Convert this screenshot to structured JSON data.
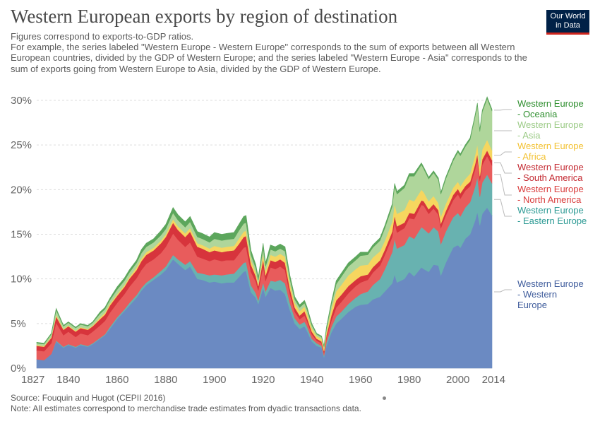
{
  "header": {
    "title": "Western European exports by region of destination",
    "subtitle": "Figures correspond to exports-to-GDP ratios.\nFor example, the series labeled \"Western Europe - Western Europe\" corresponds to the sum of exports between all Western European countries, divided by the GDP of Western Europe; and the series labeled \"Western Europe - Asia\" corresponds to the sum of exports going from Western Europe to Asia, divided by the GDP of Western Europe.",
    "logo_line1": "Our World",
    "logo_line2": "in Data"
  },
  "footer": {
    "source": "Source: Fouquin and Hugot (CEPII 2016)",
    "note": "Note: All estimates correspond to merchandise trade estimates from dyadic transactions data."
  },
  "colors": {
    "Western Europe - Western Europe": "#6b8ac2",
    "Western Europe - Eastern Europe": "#68b2b0",
    "Western Europe - North America": "#e85c5c",
    "Western Europe - South America": "#d7343c",
    "Western Europe - Africa": "#f6d65f",
    "Western Europe - Asia": "#afd69b",
    "Western Europe - Oceania": "#5ca65c"
  },
  "label_colors": {
    "Western Europe - Western Europe": "#3f5c9c",
    "Western Europe - Eastern Europe": "#2c9a94",
    "Western Europe - North America": "#d93b3b",
    "Western Europe - South America": "#c42a32",
    "Western Europe - Africa": "#f3c233",
    "Western Europe - Asia": "#9ccb87",
    "Western Europe - Oceania": "#2f8f2f"
  },
  "chart_data": {
    "type": "area",
    "stacked": true,
    "y_unit": "%",
    "xlim": [
      1827,
      2014
    ],
    "ylim": [
      0,
      30
    ],
    "x_ticks": [
      1827,
      1840,
      1860,
      1880,
      1900,
      1920,
      1940,
      1960,
      1980,
      2000,
      2014
    ],
    "y_ticks": [
      0,
      5,
      10,
      15,
      20,
      25,
      30
    ],
    "y_tick_labels": [
      "0%",
      "5%",
      "10%",
      "15%",
      "20%",
      "25%",
      "30%"
    ],
    "grid": "horizontal dashed",
    "legend_placement": "right, labels at series ends",
    "x": [
      1827,
      1830,
      1833,
      1835,
      1838,
      1840,
      1843,
      1845,
      1848,
      1850,
      1853,
      1855,
      1857,
      1860,
      1863,
      1865,
      1868,
      1870,
      1872,
      1875,
      1878,
      1880,
      1883,
      1885,
      1888,
      1890,
      1893,
      1895,
      1898,
      1900,
      1903,
      1905,
      1908,
      1910,
      1912,
      1913,
      1915,
      1917,
      1918,
      1920,
      1921,
      1923,
      1925,
      1927,
      1929,
      1931,
      1933,
      1935,
      1937,
      1938,
      1940,
      1942,
      1944,
      1945,
      1946,
      1948,
      1950,
      1952,
      1955,
      1958,
      1960,
      1963,
      1965,
      1968,
      1970,
      1973,
      1974,
      1975,
      1978,
      1980,
      1982,
      1985,
      1986,
      1988,
      1990,
      1992,
      1993,
      1995,
      1998,
      2000,
      2001,
      2003,
      2005,
      2007,
      2008,
      2009,
      2010,
      2012,
      2014
    ],
    "series": [
      {
        "name": "Western Europe - Western Europe",
        "values": [
          1.0,
          0.9,
          1.6,
          3.0,
          2.3,
          2.6,
          2.3,
          2.6,
          2.4,
          2.7,
          3.3,
          3.7,
          4.4,
          5.5,
          6.4,
          7.0,
          7.9,
          8.7,
          9.3,
          9.9,
          10.5,
          11.0,
          12.2,
          11.7,
          11.0,
          11.4,
          10.0,
          9.9,
          9.6,
          9.7,
          9.5,
          9.6,
          9.6,
          10.2,
          10.8,
          10.9,
          8.5,
          7.9,
          7.2,
          9.0,
          8.0,
          9.0,
          8.7,
          8.8,
          8.3,
          6.5,
          5.0,
          4.4,
          4.7,
          4.2,
          3.0,
          2.5,
          2.3,
          1.2,
          2.5,
          4.0,
          5.0,
          5.5,
          6.3,
          6.9,
          7.1,
          7.2,
          7.7,
          8.0,
          8.6,
          9.5,
          10.5,
          9.6,
          10.0,
          10.8,
          10.3,
          11.3,
          11.1,
          10.8,
          11.6,
          11.5,
          10.4,
          11.8,
          13.5,
          13.8,
          13.5,
          14.5,
          15.0,
          16.5,
          17.5,
          16.0,
          17.3,
          18.0,
          17.1
        ]
      },
      {
        "name": "Western Europe - Eastern Europe",
        "values": [
          0.0,
          0.0,
          0.0,
          0.1,
          0.1,
          0.1,
          0.1,
          0.1,
          0.1,
          0.1,
          0.1,
          0.1,
          0.2,
          0.2,
          0.2,
          0.3,
          0.3,
          0.3,
          0.3,
          0.3,
          0.4,
          0.4,
          0.5,
          0.5,
          0.6,
          0.6,
          0.7,
          0.7,
          0.8,
          0.8,
          0.9,
          0.9,
          1.0,
          1.0,
          1.0,
          1.0,
          0.8,
          0.5,
          0.4,
          0.6,
          0.6,
          0.8,
          1.0,
          1.1,
          1.2,
          0.8,
          0.6,
          0.5,
          0.5,
          0.5,
          0.3,
          0.3,
          0.2,
          0.2,
          0.4,
          0.6,
          0.8,
          0.8,
          0.9,
          1.0,
          1.2,
          1.4,
          1.6,
          2.0,
          2.5,
          3.5,
          4.0,
          3.8,
          3.8,
          4.0,
          4.2,
          4.5,
          4.5,
          4.3,
          4.2,
          3.8,
          3.5,
          3.5,
          3.4,
          3.6,
          3.5,
          3.5,
          3.6,
          3.8,
          3.9,
          3.2,
          3.5,
          3.7,
          3.6
        ]
      },
      {
        "name": "Western Europe - North America",
        "values": [
          1.0,
          1.0,
          1.2,
          2.0,
          1.3,
          1.4,
          1.1,
          1.2,
          1.2,
          1.3,
          1.4,
          1.5,
          1.6,
          1.6,
          1.7,
          1.8,
          1.9,
          2.0,
          2.1,
          2.0,
          2.0,
          2.2,
          2.4,
          2.2,
          2.0,
          2.1,
          1.8,
          1.7,
          1.6,
          1.7,
          1.6,
          1.6,
          1.5,
          1.6,
          1.7,
          1.7,
          1.5,
          1.3,
          1.1,
          1.8,
          1.2,
          1.5,
          1.4,
          1.5,
          1.5,
          1.0,
          0.7,
          0.6,
          0.7,
          0.6,
          0.5,
          0.3,
          0.3,
          0.3,
          0.5,
          0.7,
          1.0,
          1.1,
          1.2,
          1.3,
          1.3,
          1.3,
          1.4,
          1.5,
          1.6,
          1.7,
          1.9,
          1.8,
          1.9,
          2.0,
          2.2,
          2.5,
          2.6,
          2.2,
          2.1,
          1.9,
          1.8,
          1.8,
          1.9,
          2.1,
          2.0,
          1.9,
          1.8,
          1.9,
          2.0,
          1.8,
          2.0,
          2.1,
          2.0
        ]
      },
      {
        "name": "Western Europe - South America",
        "values": [
          0.5,
          0.5,
          0.6,
          0.7,
          0.6,
          0.6,
          0.6,
          0.6,
          0.6,
          0.6,
          0.7,
          0.7,
          0.8,
          0.8,
          0.8,
          0.9,
          0.9,
          1.0,
          1.0,
          1.0,
          1.1,
          1.1,
          1.2,
          1.1,
          1.1,
          1.2,
          1.1,
          1.1,
          1.0,
          1.0,
          1.0,
          1.0,
          1.1,
          1.1,
          1.2,
          1.2,
          0.8,
          0.6,
          0.5,
          0.8,
          0.6,
          0.8,
          0.8,
          0.8,
          0.8,
          0.6,
          0.5,
          0.4,
          0.5,
          0.4,
          0.3,
          0.2,
          0.2,
          0.2,
          0.3,
          0.6,
          0.8,
          0.8,
          0.8,
          0.7,
          0.7,
          0.6,
          0.6,
          0.6,
          0.6,
          0.6,
          0.7,
          0.7,
          0.6,
          0.6,
          0.6,
          0.5,
          0.5,
          0.5,
          0.5,
          0.5,
          0.5,
          0.5,
          0.6,
          0.6,
          0.6,
          0.5,
          0.5,
          0.6,
          0.6,
          0.5,
          0.6,
          0.6,
          0.6
        ]
      },
      {
        "name": "Western Europe - Africa",
        "values": [
          0.1,
          0.1,
          0.1,
          0.2,
          0.1,
          0.1,
          0.1,
          0.1,
          0.1,
          0.1,
          0.2,
          0.2,
          0.2,
          0.2,
          0.2,
          0.2,
          0.3,
          0.3,
          0.3,
          0.3,
          0.3,
          0.3,
          0.4,
          0.4,
          0.4,
          0.4,
          0.4,
          0.4,
          0.4,
          0.5,
          0.5,
          0.5,
          0.5,
          0.6,
          0.6,
          0.6,
          0.5,
          0.4,
          0.3,
          0.6,
          0.5,
          0.6,
          0.6,
          0.6,
          0.7,
          0.6,
          0.5,
          0.5,
          0.5,
          0.5,
          0.4,
          0.3,
          0.3,
          0.3,
          0.4,
          0.7,
          1.0,
          1.1,
          1.2,
          1.2,
          1.2,
          1.1,
          1.1,
          1.0,
          1.0,
          1.1,
          1.3,
          1.4,
          1.4,
          1.5,
          1.4,
          1.2,
          1.0,
          0.9,
          0.9,
          0.8,
          0.8,
          0.8,
          0.8,
          0.8,
          0.8,
          0.8,
          0.9,
          1.0,
          1.1,
          1.0,
          1.1,
          1.2,
          1.1
        ]
      },
      {
        "name": "Western Europe - Asia",
        "values": [
          0.2,
          0.2,
          0.3,
          0.5,
          0.3,
          0.3,
          0.3,
          0.3,
          0.3,
          0.3,
          0.4,
          0.4,
          0.4,
          0.5,
          0.5,
          0.5,
          0.5,
          0.6,
          0.6,
          0.6,
          0.6,
          0.6,
          0.7,
          0.7,
          0.7,
          0.7,
          0.7,
          0.7,
          0.7,
          0.8,
          0.8,
          0.8,
          0.8,
          0.9,
          0.9,
          0.9,
          0.6,
          0.5,
          0.4,
          0.7,
          0.5,
          0.6,
          0.6,
          0.6,
          0.6,
          0.5,
          0.4,
          0.4,
          0.4,
          0.4,
          0.3,
          0.2,
          0.2,
          0.2,
          0.3,
          0.5,
          0.8,
          0.9,
          1.0,
          1.0,
          1.1,
          1.1,
          1.1,
          1.2,
          1.4,
          1.7,
          2.0,
          2.2,
          2.5,
          2.6,
          2.8,
          2.8,
          2.6,
          2.5,
          2.6,
          2.6,
          2.5,
          2.8,
          3.0,
          3.3,
          3.4,
          3.6,
          3.8,
          4.3,
          4.4,
          4.0,
          4.2,
          4.6,
          4.4
        ]
      },
      {
        "name": "Western Europe - Oceania",
        "values": [
          0.1,
          0.1,
          0.1,
          0.2,
          0.1,
          0.1,
          0.1,
          0.1,
          0.1,
          0.1,
          0.2,
          0.2,
          0.2,
          0.3,
          0.3,
          0.3,
          0.3,
          0.4,
          0.4,
          0.4,
          0.5,
          0.5,
          0.6,
          0.6,
          0.6,
          0.6,
          0.6,
          0.6,
          0.6,
          0.7,
          0.7,
          0.7,
          0.7,
          0.7,
          0.8,
          0.8,
          0.5,
          0.4,
          0.3,
          0.5,
          0.4,
          0.5,
          0.5,
          0.5,
          0.5,
          0.4,
          0.3,
          0.3,
          0.3,
          0.3,
          0.2,
          0.1,
          0.1,
          0.1,
          0.2,
          0.3,
          0.4,
          0.4,
          0.4,
          0.4,
          0.4,
          0.3,
          0.3,
          0.3,
          0.3,
          0.3,
          0.3,
          0.3,
          0.3,
          0.3,
          0.3,
          0.2,
          0.2,
          0.2,
          0.2,
          0.2,
          0.2,
          0.2,
          0.2,
          0.2,
          0.2,
          0.2,
          0.2,
          0.2,
          0.2,
          0.2,
          0.2,
          0.2,
          0.2
        ]
      }
    ],
    "legend_labels": [
      {
        "series": "Western Europe - Oceania",
        "lines": [
          "Western Europe",
          "- Oceania"
        ]
      },
      {
        "series": "Western Europe - Asia",
        "lines": [
          "Western Europe",
          "- Asia"
        ]
      },
      {
        "series": "Western Europe - Africa",
        "lines": [
          "Western Europe",
          "- Africa"
        ]
      },
      {
        "series": "Western Europe - South America",
        "lines": [
          "Western Europe",
          "- South America"
        ]
      },
      {
        "series": "Western Europe - North America",
        "lines": [
          "Western Europe",
          "- North America"
        ]
      },
      {
        "series": "Western Europe - Eastern Europe",
        "lines": [
          "Western Europe",
          "- Eastern Europe"
        ]
      },
      {
        "series": "Western Europe - Western Europe",
        "lines": [
          "Western Europe",
          "- Western",
          "Europe"
        ]
      }
    ]
  }
}
